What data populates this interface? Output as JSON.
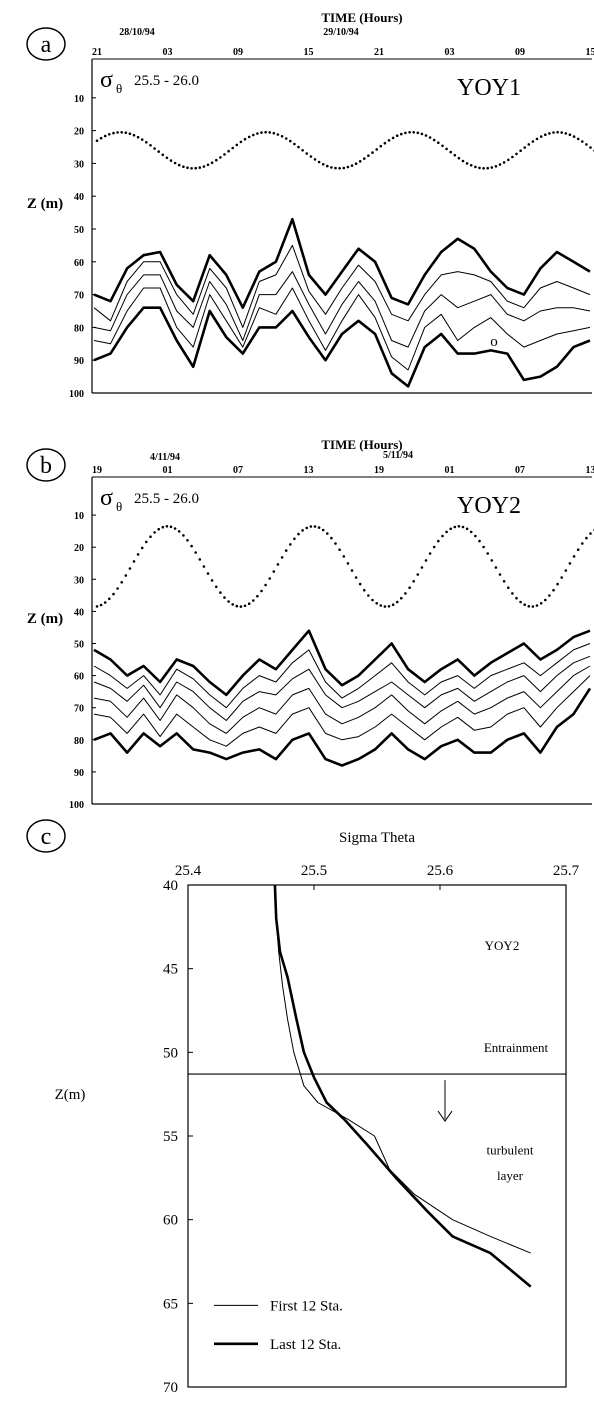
{
  "chart_data": [
    {
      "type": "line",
      "panel_letter": "a",
      "xlabel": "TIME (Hours)",
      "date_labels": [
        "28/10/94",
        "29/10/94"
      ],
      "x_ticks": [
        "21",
        "03",
        "09",
        "15",
        "21",
        "03",
        "09",
        "15"
      ],
      "y_ticks": [
        10,
        20,
        30,
        40,
        50,
        60,
        70,
        80,
        90,
        100
      ],
      "ylabel": "Z (m)",
      "ylim": [
        0,
        100
      ],
      "sigma_range": "25.5 - 26.0",
      "station": "YOY1",
      "annotation": "o",
      "tide_curve": {
        "style": "dotted",
        "mean_z": 26,
        "amplitude_z": 5.5,
        "period_h": 12.4
      },
      "series_note": "isopycnals from 25.5 (top) to 26.0 (bottom)",
      "series": [
        {
          "values": [
            70,
            72,
            62,
            58,
            57,
            67,
            72,
            58,
            64,
            74,
            63,
            60,
            47,
            64,
            70,
            63,
            56,
            60,
            71,
            73,
            64,
            57,
            53,
            56,
            63,
            68,
            70,
            62,
            57,
            60,
            63
          ]
        },
        {
          "values": [
            74,
            78,
            66,
            60,
            60,
            70,
            76,
            62,
            68,
            80,
            66,
            64,
            55,
            69,
            76,
            68,
            61,
            66,
            76,
            78,
            70,
            64,
            63,
            64,
            66,
            72,
            74,
            68,
            66,
            68,
            70
          ]
        },
        {
          "values": [
            80,
            81,
            70,
            64,
            64,
            75,
            80,
            66,
            73,
            84,
            70,
            70,
            63,
            73,
            82,
            73,
            66,
            72,
            84,
            86,
            75,
            70,
            74,
            72,
            70,
            76,
            78,
            75,
            74,
            74,
            75
          ]
        },
        {
          "values": [
            84,
            85,
            75,
            68,
            68,
            80,
            86,
            70,
            78,
            86,
            74,
            76,
            68,
            78,
            87,
            78,
            70,
            77,
            89,
            93,
            80,
            76,
            84,
            80,
            77,
            82,
            86,
            84,
            82,
            81,
            80
          ]
        },
        {
          "values": [
            90,
            88,
            80,
            74,
            74,
            84,
            92,
            75,
            83,
            88,
            80,
            80,
            75,
            83,
            90,
            82,
            78,
            82,
            94,
            98,
            86,
            82,
            88,
            88,
            87,
            88,
            96,
            95,
            92,
            86,
            84
          ]
        }
      ]
    },
    {
      "type": "line",
      "panel_letter": "b",
      "xlabel": "TIME (Hours)",
      "date_labels": [
        "4/11/94",
        "5/11/94"
      ],
      "x_ticks": [
        "19",
        "01",
        "07",
        "13",
        "19",
        "01",
        "07",
        "13"
      ],
      "y_ticks": [
        10,
        20,
        30,
        40,
        50,
        60,
        70,
        80,
        90,
        100
      ],
      "ylabel": "Z (m)",
      "ylim": [
        0,
        100
      ],
      "sigma_range": "25.5 - 26.0",
      "station": "YOY2",
      "tide_curve": {
        "style": "dotted",
        "mean_z": 26,
        "amplitude_z": 12.5,
        "period_h": 12.4
      },
      "series_note": "isopycnals from 25.5 (top) to 26.0 (bottom)",
      "series": [
        {
          "values": [
            52,
            55,
            60,
            57,
            62,
            55,
            57,
            62,
            66,
            60,
            55,
            58,
            52,
            46,
            58,
            63,
            60,
            55,
            50,
            58,
            62,
            58,
            55,
            60,
            56,
            53,
            50,
            55,
            52,
            48,
            46
          ]
        },
        {
          "values": [
            57,
            60,
            64,
            60,
            66,
            58,
            61,
            66,
            70,
            64,
            60,
            62,
            56,
            52,
            62,
            67,
            64,
            60,
            56,
            62,
            66,
            62,
            60,
            64,
            60,
            58,
            56,
            60,
            56,
            52,
            50
          ]
        },
        {
          "values": [
            62,
            64,
            68,
            63,
            70,
            62,
            65,
            70,
            74,
            68,
            65,
            66,
            61,
            58,
            66,
            70,
            68,
            65,
            62,
            66,
            70,
            66,
            64,
            68,
            65,
            62,
            60,
            65,
            60,
            56,
            54
          ]
        },
        {
          "values": [
            67,
            68,
            73,
            67,
            74,
            66,
            70,
            75,
            78,
            73,
            70,
            72,
            66,
            64,
            72,
            75,
            73,
            70,
            66,
            71,
            75,
            71,
            68,
            72,
            70,
            67,
            65,
            70,
            65,
            60,
            57
          ]
        },
        {
          "values": [
            72,
            73,
            78,
            72,
            79,
            72,
            76,
            80,
            82,
            78,
            76,
            78,
            72,
            70,
            78,
            80,
            79,
            76,
            72,
            76,
            80,
            76,
            73,
            77,
            76,
            72,
            70,
            76,
            70,
            65,
            60
          ]
        },
        {
          "values": [
            80,
            78,
            84,
            78,
            82,
            78,
            83,
            84,
            86,
            84,
            83,
            86,
            80,
            78,
            86,
            88,
            86,
            83,
            78,
            83,
            86,
            82,
            80,
            84,
            84,
            80,
            78,
            84,
            76,
            72,
            64
          ]
        }
      ]
    },
    {
      "type": "line",
      "panel_letter": "c",
      "title": "Sigma Theta",
      "ylabel": "Z(m)",
      "xlim": [
        25.4,
        25.7
      ],
      "ylim": [
        40,
        70
      ],
      "x_ticks": [
        "25.4",
        "25.5",
        "25.6",
        "25.7"
      ],
      "y_ticks": [
        "40",
        "45",
        "50",
        "55",
        "60",
        "65",
        "70"
      ],
      "station": "YOY2",
      "annotations": [
        "Entrainment",
        "turbulent",
        "layer"
      ],
      "reference_depth": 51.3,
      "legend": [
        "First 12 Sta.",
        "Last 12 Sta."
      ],
      "series": [
        {
          "name": "First 12 Sta.",
          "x": [
            25.469,
            25.47,
            25.472,
            25.475,
            25.479,
            25.484,
            25.492,
            25.503,
            25.527,
            25.548,
            25.56,
            25.58,
            25.61,
            25.64,
            25.672
          ],
          "y": [
            40.0,
            42.0,
            44.0,
            46.0,
            48.0,
            50.0,
            52.0,
            53.0,
            54.0,
            55.0,
            57.0,
            58.5,
            60.0,
            61.0,
            62.0
          ]
        },
        {
          "name": "Last 12 Sta.",
          "x": [
            25.469,
            25.47,
            25.473,
            25.479,
            25.486,
            25.492,
            25.5,
            25.51,
            25.524,
            25.542,
            25.565,
            25.59,
            25.61,
            25.64,
            25.672
          ],
          "y": [
            40.0,
            42.0,
            44.0,
            45.5,
            48.0,
            50.0,
            51.5,
            53.0,
            54.0,
            55.5,
            57.5,
            59.5,
            61.0,
            62.0,
            64.0
          ]
        }
      ]
    }
  ]
}
